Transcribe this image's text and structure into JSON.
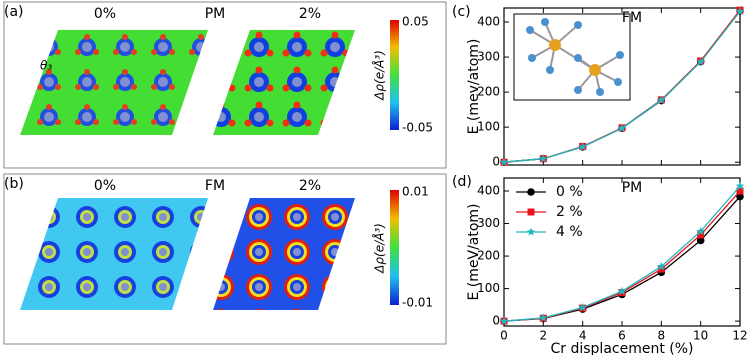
{
  "maps": [
    {
      "label": "(a)",
      "left_title": "0%",
      "center_title": "PM",
      "right_title": "2%",
      "colorbar_label": "Δρ(e/Å³)",
      "colorbar_ticks": [
        0.05,
        -0.05
      ],
      "annotation": "θ₃"
    },
    {
      "label": "(b)",
      "left_title": "0%",
      "center_title": "FM",
      "right_title": "2%",
      "colorbar_label": "Δρ(e/Å³)",
      "colorbar_ticks": [
        0.01,
        -0.01
      ]
    }
  ],
  "chart_data": [
    {
      "type": "line",
      "panel_label": "(c)",
      "title": "FM",
      "ylabel": "E (mev/atom)",
      "x": [
        0,
        2,
        4,
        6,
        8,
        10,
        12
      ],
      "xlim": [
        0,
        12
      ],
      "xticks": [
        0,
        2,
        4,
        6,
        8,
        10,
        12
      ],
      "xtick_labels": false,
      "ylim": [
        -8,
        440
      ],
      "yticks": [
        0,
        100,
        200,
        300,
        400
      ],
      "series": [
        {
          "color": "#000000",
          "marker": "circle",
          "values": [
            0,
            10,
            44,
            97,
            176,
            287,
            432
          ]
        },
        {
          "color": "#e8141c",
          "marker": "square",
          "values": [
            0,
            10,
            45,
            98,
            178,
            289,
            434
          ]
        },
        {
          "color": "#20b8c0",
          "marker": "star",
          "values": [
            0,
            10,
            44,
            97,
            177,
            286,
            430
          ]
        }
      ]
    },
    {
      "type": "line",
      "panel_label": "(d)",
      "title": "PM",
      "ylabel": "E (meV/atom)",
      "xlabel": "Cr displacement (%)",
      "x": [
        0,
        2,
        4,
        6,
        8,
        10,
        12
      ],
      "xlim": [
        0,
        12
      ],
      "xticks": [
        0,
        2,
        4,
        6,
        8,
        10,
        12
      ],
      "xtick_labels": true,
      "ylim": [
        -15,
        440
      ],
      "yticks": [
        0,
        100,
        200,
        300,
        400
      ],
      "legend": "upper left",
      "series": [
        {
          "name": "0 %",
          "color": "#000000",
          "marker": "circle",
          "values": [
            0,
            8,
            37,
            82,
            150,
            248,
            383
          ]
        },
        {
          "name": "2 %",
          "color": "#e8141c",
          "marker": "square",
          "values": [
            0,
            9,
            40,
            88,
            160,
            265,
            400
          ]
        },
        {
          "name": "4 %",
          "color": "#20b8c0",
          "marker": "star",
          "values": [
            0,
            10,
            42,
            92,
            168,
            276,
            415
          ]
        }
      ]
    }
  ]
}
